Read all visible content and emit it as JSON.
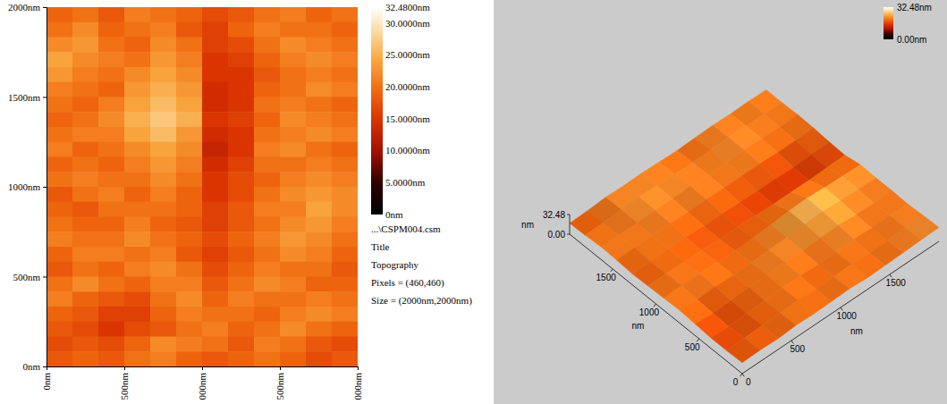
{
  "chart_data": [
    {
      "type": "heatmap",
      "xlim": [
        0,
        2000
      ],
      "ylim": [
        0,
        2000
      ],
      "xticks": [
        {
          "value": 0,
          "label": "0nm"
        },
        {
          "value": 500,
          "label": "500nm"
        },
        {
          "value": 1000,
          "label": "000nm"
        },
        {
          "value": 1500,
          "label": "500nm"
        },
        {
          "value": 2000,
          "label": "000nm"
        }
      ],
      "yticks": [
        {
          "value": 0,
          "label": "0nm"
        },
        {
          "value": 500,
          "label": "500nm"
        },
        {
          "value": 1000,
          "label": "1000nm"
        },
        {
          "value": 1500,
          "label": "1500nm"
        },
        {
          "value": 2000,
          "label": "2000nm"
        }
      ],
      "z": [
        [
          19,
          20,
          18,
          21,
          20,
          19,
          17,
          18,
          20,
          21,
          19,
          20
        ],
        [
          20,
          22,
          19,
          20,
          21,
          18,
          16,
          19,
          21,
          20,
          20,
          19
        ],
        [
          22,
          23,
          20,
          19,
          22,
          20,
          16,
          17,
          20,
          22,
          21,
          20
        ],
        [
          24,
          22,
          21,
          20,
          23,
          21,
          15,
          16,
          19,
          21,
          22,
          21
        ],
        [
          23,
          21,
          20,
          22,
          24,
          22,
          15,
          15,
          18,
          20,
          21,
          20
        ],
        [
          21,
          20,
          19,
          23,
          25,
          23,
          14,
          15,
          19,
          20,
          22,
          21
        ],
        [
          20,
          19,
          21,
          24,
          26,
          24,
          14,
          15,
          20,
          21,
          20,
          19
        ],
        [
          19,
          20,
          22,
          25,
          27,
          25,
          15,
          16,
          19,
          22,
          21,
          20
        ],
        [
          20,
          21,
          21,
          24,
          26,
          23,
          14,
          15,
          20,
          21,
          22,
          21
        ],
        [
          21,
          19,
          20,
          22,
          24,
          22,
          13,
          15,
          21,
          22,
          20,
          19
        ],
        [
          19,
          20,
          19,
          21,
          23,
          21,
          14,
          16,
          20,
          20,
          21,
          20
        ],
        [
          20,
          21,
          20,
          20,
          22,
          20,
          15,
          17,
          19,
          21,
          22,
          21
        ],
        [
          18,
          20,
          21,
          19,
          21,
          19,
          15,
          17,
          20,
          22,
          23,
          22
        ],
        [
          19,
          18,
          20,
          20,
          20,
          19,
          16,
          18,
          21,
          21,
          24,
          22
        ],
        [
          20,
          19,
          19,
          21,
          19,
          18,
          16,
          18,
          20,
          22,
          23,
          21
        ],
        [
          21,
          20,
          20,
          22,
          20,
          19,
          17,
          19,
          21,
          23,
          22,
          20
        ],
        [
          19,
          21,
          21,
          20,
          21,
          18,
          16,
          18,
          20,
          22,
          21,
          19
        ],
        [
          18,
          20,
          19,
          21,
          22,
          20,
          17,
          19,
          21,
          20,
          20,
          18
        ],
        [
          20,
          22,
          20,
          19,
          21,
          21,
          18,
          20,
          22,
          21,
          19,
          19
        ],
        [
          21,
          19,
          18,
          17,
          20,
          22,
          19,
          21,
          20,
          20,
          21,
          20
        ],
        [
          19,
          18,
          16,
          16,
          19,
          21,
          20,
          20,
          19,
          21,
          22,
          21
        ],
        [
          18,
          17,
          15,
          17,
          18,
          20,
          21,
          19,
          20,
          22,
          20,
          19
        ],
        [
          17,
          18,
          17,
          19,
          22,
          21,
          20,
          18,
          21,
          20,
          18,
          17
        ],
        [
          18,
          19,
          18,
          20,
          21,
          19,
          18,
          19,
          20,
          19,
          17,
          18
        ]
      ],
      "colorbar": {
        "range": [
          0,
          32.48
        ],
        "ticks": [
          {
            "value": 32.48,
            "label": "32.4800nm"
          },
          {
            "value": 30,
            "label": "30.0000nm"
          },
          {
            "value": 25,
            "label": "25.0000nm"
          },
          {
            "value": 20,
            "label": "20.0000nm"
          },
          {
            "value": 15,
            "label": "15.0000nm"
          },
          {
            "value": 10,
            "label": "10.0000nm"
          },
          {
            "value": 5,
            "label": "5.0000nm"
          },
          {
            "value": 0,
            "label": "0nm"
          }
        ]
      },
      "annotations": [
        "...\\CSPM004.csm",
        "Title",
        "Topography",
        "Pixels = (460,460)",
        "Size = (2000nm,2000nm)"
      ]
    },
    {
      "type": "surface",
      "xlim": [
        0,
        2000
      ],
      "ylim": [
        0,
        2000
      ],
      "zlim": [
        0,
        32.48
      ],
      "xticks": [
        0,
        500,
        1000,
        1500
      ],
      "yticks": [
        0,
        500,
        1000,
        1500
      ],
      "zticks": [
        {
          "value": 0,
          "label": "0.00"
        },
        {
          "value": 32.48,
          "label": "32.48"
        }
      ],
      "x_label": "nm",
      "y_label": "nm",
      "z_label": "nm",
      "z": [
        [
          18,
          19,
          18,
          20,
          19,
          20,
          21,
          19,
          20,
          21,
          22,
          23
        ],
        [
          17,
          18,
          19,
          20,
          21,
          19,
          20,
          21,
          19,
          20,
          21,
          22
        ],
        [
          17,
          16,
          18,
          19,
          20,
          20,
          19,
          20,
          21,
          20,
          21,
          20
        ],
        [
          19,
          17,
          18,
          20,
          21,
          22,
          21,
          22,
          23,
          21,
          20,
          21
        ],
        [
          21,
          19,
          20,
          19,
          20,
          21,
          22,
          24,
          25,
          23,
          22,
          21
        ],
        [
          20,
          21,
          21,
          20,
          19,
          20,
          22,
          25,
          26,
          24,
          23,
          22
        ],
        [
          19,
          20,
          19,
          18,
          17,
          17,
          16,
          15,
          15,
          15,
          16,
          17
        ],
        [
          18,
          19,
          20,
          19,
          18,
          18,
          17,
          16,
          16,
          15,
          17,
          18
        ],
        [
          20,
          21,
          20,
          21,
          20,
          21,
          20,
          20,
          20,
          19,
          19,
          20
        ],
        [
          21,
          20,
          21,
          22,
          21,
          22,
          21,
          21,
          22,
          21,
          20,
          21
        ],
        [
          19,
          20,
          22,
          23,
          22,
          21,
          20,
          21,
          22,
          21,
          21,
          20
        ],
        [
          18,
          19,
          21,
          20,
          21,
          20,
          19,
          20,
          21,
          20,
          21,
          20
        ]
      ],
      "colorbar": {
        "range": [
          0,
          32.48
        ],
        "ticks": [
          {
            "value": 32.48,
            "label": "32.48nm"
          },
          {
            "value": 0,
            "label": "0.00nm"
          }
        ]
      }
    }
  ]
}
